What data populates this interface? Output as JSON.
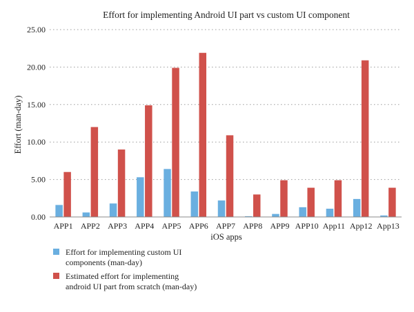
{
  "chart_data": {
    "type": "bar",
    "title": "Effort for implementing Android UI part vs custom UI component",
    "xlabel": "iOS apps",
    "ylabel": "Effort (man-day)",
    "ylim": [
      0,
      25
    ],
    "yticks": [
      "0.00",
      "5.00",
      "10.00",
      "15.00",
      "20.00",
      "25.00"
    ],
    "grid": "horizontal-dotted",
    "legend_position": "bottom-left",
    "categories": [
      "APP1",
      "APP2",
      "APP3",
      "APP4",
      "APP5",
      "APP6",
      "APP7",
      "APP8",
      "APP9",
      "APP10",
      "App11",
      "App12",
      "App13"
    ],
    "series": [
      {
        "name": "Effort for implementing custom UI components (man-day)",
        "legend_lines": [
          "Effort for implementing custom UI",
          "components (man-day)"
        ],
        "color": "#6aafe0",
        "values": [
          1.6,
          0.6,
          1.8,
          5.3,
          6.4,
          3.4,
          2.2,
          0.1,
          0.4,
          1.3,
          1.1,
          2.4,
          0.2
        ]
      },
      {
        "name": "Estimated effort for implementing android UI part from scratch (man-day)",
        "legend_lines": [
          "Estimated effort for implementing",
          "android UI part from scratch (man-day)"
        ],
        "color": "#d0514b",
        "values": [
          6.0,
          12.0,
          9.0,
          14.9,
          19.9,
          21.9,
          10.9,
          3.0,
          4.9,
          3.9,
          4.9,
          20.9,
          3.9
        ]
      }
    ]
  }
}
